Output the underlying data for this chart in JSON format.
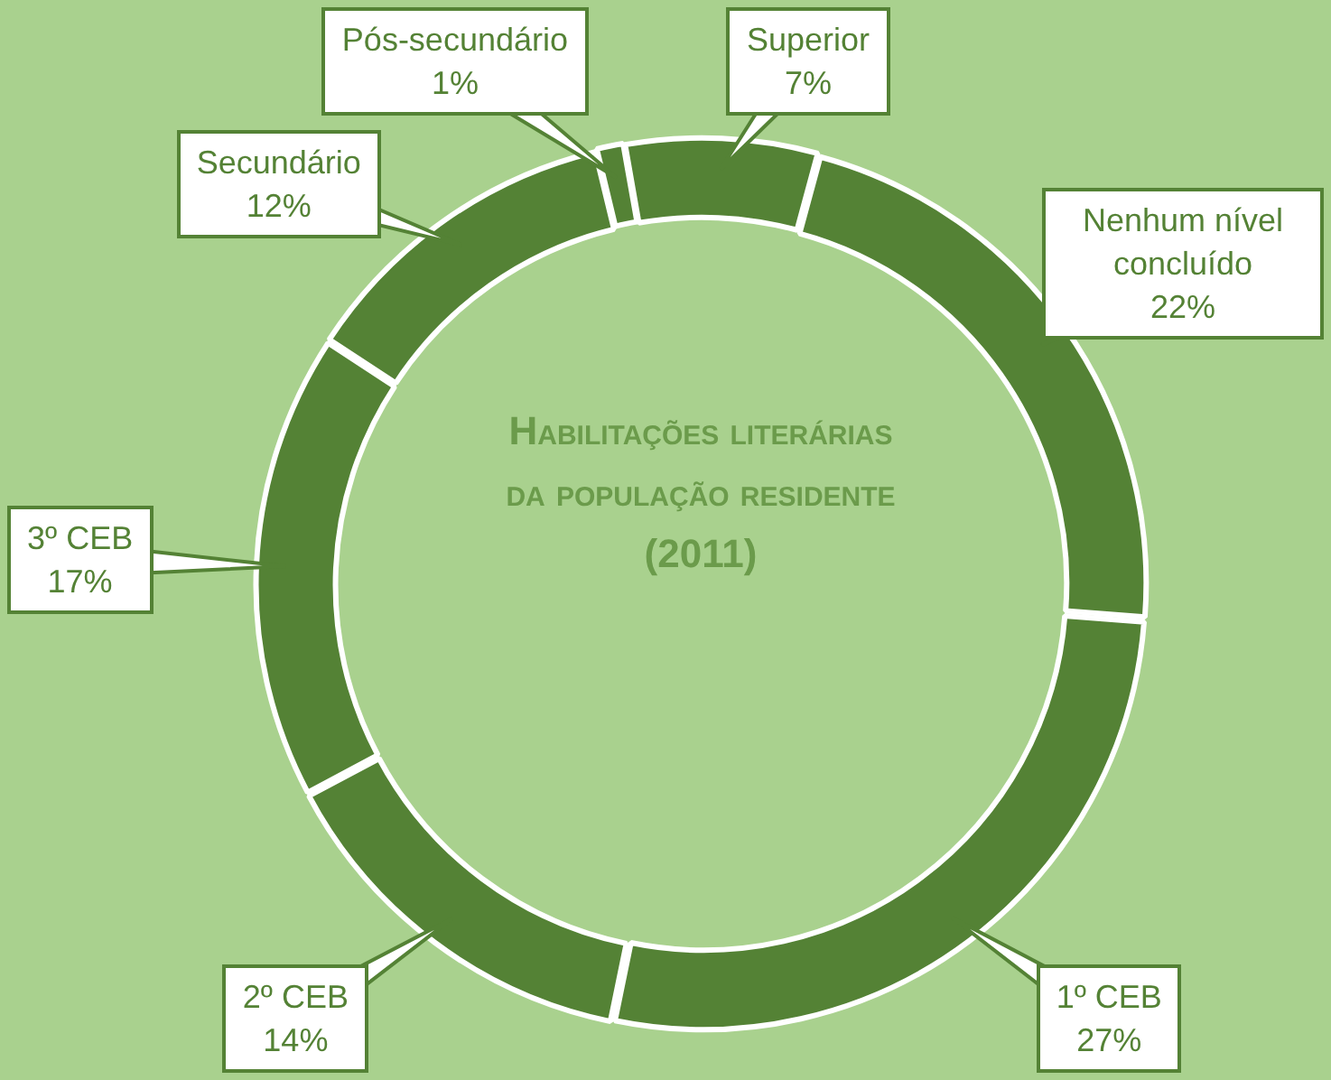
{
  "chart_data": {
    "type": "donut",
    "title": "Habilitações literárias da população residente (2011)",
    "categories": [
      "Superior",
      "Nenhum nível concluído",
      "1º CEB",
      "2º CEB",
      "3º CEB",
      "Secundário",
      "Pós-secundário"
    ],
    "values": [
      7,
      22,
      27,
      14,
      17,
      12,
      1
    ],
    "colors": [
      "#548235",
      "#548235",
      "#548235",
      "#548235",
      "#548235",
      "#548235",
      "#548235"
    ],
    "value_labels": [
      "7%",
      "22%",
      "27%",
      "14%",
      "17%",
      "12%",
      "1%"
    ]
  }
}
